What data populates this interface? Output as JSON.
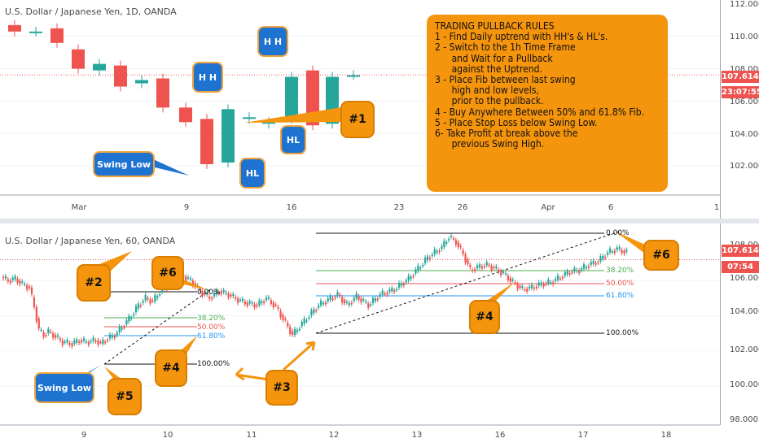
{
  "top_chart": {
    "symbol": "U.S. Dollar / Japanese Yen, 1D, OANDA",
    "price_labels": [
      "112.000",
      "110.000",
      "108.000",
      "106.000",
      "104.000",
      "102.000"
    ],
    "date_labels": [
      "Mar",
      "9",
      "16",
      "23",
      "26",
      "Apr",
      "6",
      "1"
    ],
    "current_price": "107.614",
    "countdown": "23:07:55",
    "candles": [
      {
        "o": 110.7,
        "c": 110.3
      },
      {
        "o": 110.3,
        "c": 110.3
      },
      {
        "o": 110.5,
        "c": 109.6
      },
      {
        "o": 109.2,
        "c": 108.0
      },
      {
        "o": 107.9,
        "c": 108.3
      },
      {
        "o": 108.2,
        "c": 106.9
      },
      {
        "o": 107.1,
        "c": 107.3
      },
      {
        "o": 107.4,
        "c": 105.6
      },
      {
        "o": 105.6,
        "c": 104.7
      },
      {
        "o": 104.9,
        "c": 102.1
      },
      {
        "o": 102.2,
        "c": 105.5
      },
      {
        "o": 104.9,
        "c": 105.0
      },
      {
        "o": 104.6,
        "c": 104.7
      },
      {
        "o": 104.9,
        "c": 107.5
      },
      {
        "o": 107.9,
        "c": 104.5
      },
      {
        "o": 104.6,
        "c": 107.5
      },
      {
        "o": 107.6,
        "c": 107.6
      }
    ]
  },
  "bottom_chart": {
    "symbol": "U.S. Dollar / Japanese Yen, 60, OANDA",
    "price_labels": [
      "108.000",
      "106.000",
      "104.000",
      "102.000",
      "100.000",
      "98.000"
    ],
    "date_labels": [
      "9",
      "10",
      "11",
      "12",
      "13",
      "16",
      "17",
      "18"
    ],
    "current_price": "107.614",
    "countdown": "07:54",
    "fib_left": {
      "f0": "0.00%",
      "f382": "38.20%",
      "f50": "50.00%",
      "f618": "61.80%",
      "f100": "100.00%"
    },
    "fib_right": {
      "f0": "0.00%",
      "f382": "38.20%",
      "f50": "50.00%",
      "f618": "61.80%",
      "f100": "100.00%"
    },
    "price_path": [
      [
        0,
        106.2
      ],
      [
        3,
        106.0
      ],
      [
        6,
        106.1
      ],
      [
        9,
        105.8
      ],
      [
        12,
        105.6
      ],
      [
        14,
        104.5
      ],
      [
        16,
        103.2
      ],
      [
        18,
        102.9
      ],
      [
        20,
        103.1
      ],
      [
        23,
        102.8
      ],
      [
        26,
        102.5
      ],
      [
        30,
        102.4
      ],
      [
        33,
        102.6
      ],
      [
        36,
        102.5
      ],
      [
        40,
        102.6
      ],
      [
        42,
        102.4
      ],
      [
        45,
        102.7
      ],
      [
        48,
        102.9
      ],
      [
        52,
        103.5
      ],
      [
        55,
        104.0
      ],
      [
        58,
        104.6
      ],
      [
        61,
        105.0
      ],
      [
        64,
        104.8
      ],
      [
        66,
        105.2
      ],
      [
        68,
        105.5
      ],
      [
        70,
        105.6
      ],
      [
        72,
        106.1
      ],
      [
        74,
        106.0
      ],
      [
        76,
        106.3
      ],
      [
        80,
        106.0
      ],
      [
        84,
        105.4
      ],
      [
        88,
        105.0
      ],
      [
        92,
        105.4
      ],
      [
        96,
        105.2
      ],
      [
        100,
        104.9
      ],
      [
        104,
        104.7
      ],
      [
        108,
        104.6
      ],
      [
        112,
        105.0
      ],
      [
        116,
        104.5
      ],
      [
        120,
        103.6
      ],
      [
        123,
        102.9
      ],
      [
        126,
        103.4
      ],
      [
        130,
        104.0
      ],
      [
        134,
        104.6
      ],
      [
        138,
        104.9
      ],
      [
        142,
        105.2
      ],
      [
        146,
        104.6
      ],
      [
        150,
        105.1
      ],
      [
        155,
        104.6
      ],
      [
        160,
        105.2
      ],
      [
        166,
        105.5
      ],
      [
        172,
        106.1
      ],
      [
        176,
        106.7
      ],
      [
        180,
        107.3
      ],
      [
        183,
        107.6
      ],
      [
        186,
        107.9
      ],
      [
        189,
        108.5
      ],
      [
        192,
        108.2
      ],
      [
        195,
        107.5
      ],
      [
        198,
        106.6
      ],
      [
        202,
        106.8
      ],
      [
        205,
        106.9
      ],
      [
        208,
        106.7
      ],
      [
        212,
        106.4
      ],
      [
        216,
        105.9
      ],
      [
        220,
        105.5
      ],
      [
        224,
        105.6
      ],
      [
        228,
        105.8
      ],
      [
        232,
        105.9
      ],
      [
        236,
        106.2
      ],
      [
        240,
        106.5
      ],
      [
        244,
        106.6
      ],
      [
        248,
        106.9
      ],
      [
        252,
        107.1
      ],
      [
        256,
        107.6
      ],
      [
        260,
        107.8
      ],
      [
        264,
        107.6
      ]
    ]
  },
  "callouts": {
    "hh1": "H H",
    "hh2": "H H",
    "hl1": "HL",
    "hl2": "HL",
    "swing_low_top": "Swing Low",
    "swing_low_bottom": "Swing Low",
    "c1": "#1",
    "c2": "#2",
    "c3": "#3",
    "c4a": "#4",
    "c4b": "#4",
    "c5": "#5",
    "c6a": "#6",
    "c6b": "#6"
  },
  "rules": {
    "title": "TRADING PULLBACK RULES",
    "lines": [
      "1 - Find Daily uptrend with HH's & HL's.",
      "2 - Switch to the 1h Time Frame",
      "      and Wait for a Pullback",
      "      against the Uptrend.",
      "3 - Place Fib between last swing",
      "      high and low levels,",
      "      prior to the pullback.",
      "4 - Buy Anywhere Between 50% and 61.8% Fib.",
      "5 - Place Stop Loss below Swing Low.",
      "6- Take Profit at break above the",
      "      previous Swing High."
    ]
  },
  "colors": {
    "up": "#26a69a",
    "down": "#ef5350",
    "callout": "#f5940d",
    "label_blue": "#1e73d1"
  }
}
